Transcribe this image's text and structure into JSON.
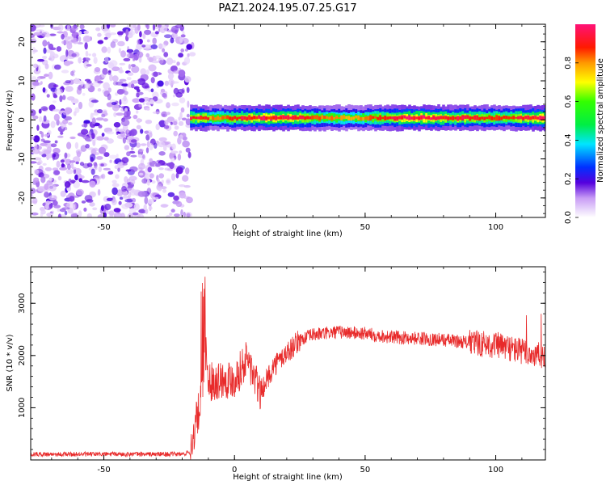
{
  "figure_title": "PAZ1.2024.195.07.25.G17",
  "chart_data": [
    {
      "type": "heatmap",
      "title": "",
      "xlabel": "Height of straight line (km)",
      "ylabel": "Frequency (Hz)",
      "xlim": [
        -78,
        119
      ],
      "ylim": [
        -25,
        24.5
      ],
      "xticks": [
        -50,
        0,
        50,
        100
      ],
      "yticks": [
        -20,
        -10,
        0,
        10,
        20
      ],
      "grid": false,
      "colorbar": {
        "label": "Normalized spectral amplitude",
        "range": [
          0,
          1
        ],
        "ticks": [
          0.0,
          0.2,
          0.4,
          0.6,
          0.8
        ],
        "colormap": "rainbow (white-violet-blue-cyan-green-yellow-red-magenta)"
      },
      "regions": [
        {
          "x_range": [
            -78,
            -17
          ],
          "description": "broadband low-amplitude noise, values 0.0-0.2"
        },
        {
          "x_range": [
            -17,
            119
          ],
          "freq_center": 0.5,
          "freq_halfwidth": 2,
          "description": "narrow band near 0 Hz, peak values 0.8-1.0"
        }
      ]
    },
    {
      "type": "line",
      "title": "",
      "xlabel": "Height of straight line (km)",
      "ylabel": "SNR (10 * v/v)",
      "xlim": [
        -78,
        119
      ],
      "ylim": [
        0,
        3700
      ],
      "xticks": [
        -50,
        0,
        50,
        100
      ],
      "yticks": [
        1000,
        2000,
        3000
      ],
      "grid": false,
      "series_color": "#e82a2a",
      "x": [
        -78,
        -60,
        -40,
        -20,
        -17,
        -15,
        -13,
        -11,
        -10,
        -5,
        0,
        5,
        8,
        10,
        15,
        20,
        25,
        30,
        40,
        50,
        60,
        70,
        80,
        90,
        100,
        105,
        110,
        115,
        119
      ],
      "y": [
        110,
        110,
        110,
        110,
        150,
        650,
        1100,
        2100,
        1500,
        1550,
        1550,
        1950,
        1500,
        1300,
        1800,
        2050,
        2300,
        2400,
        2450,
        2420,
        2350,
        2330,
        2300,
        2250,
        2200,
        2150,
        2080,
        2000,
        2000
      ]
    }
  ]
}
